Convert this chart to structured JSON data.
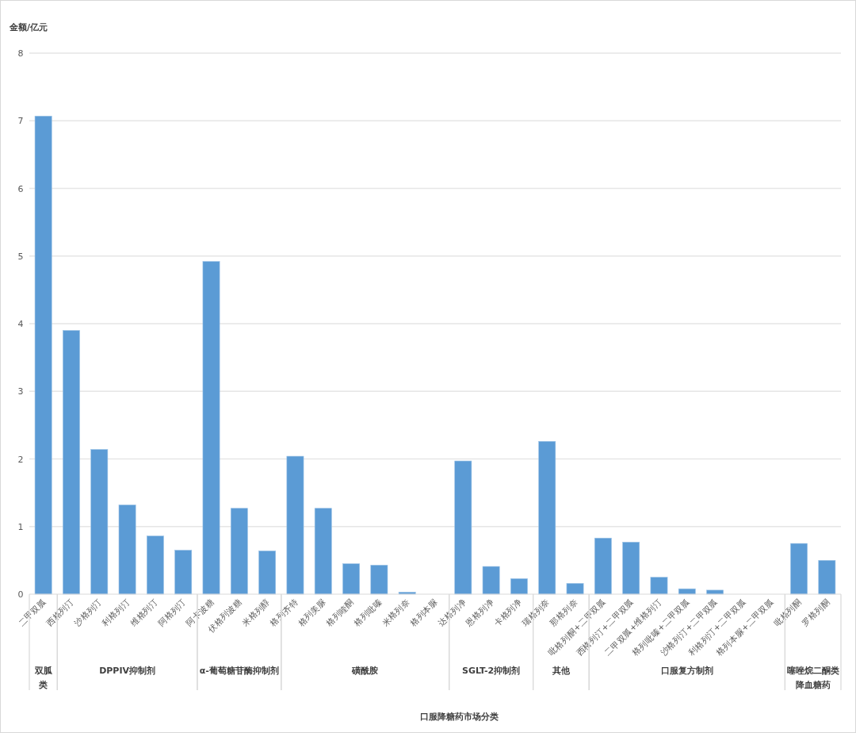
{
  "chart_data": {
    "type": "bar",
    "ylabel": "金额/亿元",
    "categories": [
      "二甲双胍",
      "西格列汀",
      "沙格列汀",
      "利格列汀",
      "维格列汀",
      "阿格列汀",
      "阿卡波糖",
      "伏格列波糖",
      "米格列醇",
      "格列齐特",
      "格列美脲",
      "格列喹酮",
      "格列吡嗪",
      "米格列奈",
      "格列本脲",
      "达格列净",
      "恩格列净",
      "卡格列净",
      "瑞格列奈",
      "那格列奈",
      "吡格列酮+二甲双胍",
      "西格列汀+二甲双胍",
      "二甲双胍+维格列汀",
      "格列吡嗪+二甲双胍",
      "沙格列汀+二甲双胍",
      "利格列汀+二甲双胍",
      "格列本脲+二甲双胍",
      "吡格列酮",
      "罗格列酮"
    ],
    "values": [
      7.07,
      3.9,
      2.14,
      1.32,
      0.86,
      0.65,
      4.92,
      1.27,
      0.64,
      2.04,
      1.27,
      0.45,
      0.43,
      0.03,
      0,
      1.97,
      0.41,
      0.23,
      2.26,
      0.16,
      0.83,
      0.77,
      0.25,
      0.08,
      0.06,
      0,
      0,
      0.75,
      0.5
    ],
    "color": "#5b9bd5",
    "ylim": [
      0,
      8
    ],
    "yticks": [
      0,
      1,
      2,
      3,
      4,
      5,
      6,
      7,
      8
    ],
    "grid": "y",
    "annotations": [
      "双胍类",
      "DPPIV抑制剂",
      "α-葡萄糖苷酶抑制剂",
      "磺酰胺",
      "SGLT-2抑制剂",
      "其他",
      "口服复方制剂",
      "噻唑烷二酮类降血糖药",
      "口服降糖药市场分类"
    ]
  }
}
